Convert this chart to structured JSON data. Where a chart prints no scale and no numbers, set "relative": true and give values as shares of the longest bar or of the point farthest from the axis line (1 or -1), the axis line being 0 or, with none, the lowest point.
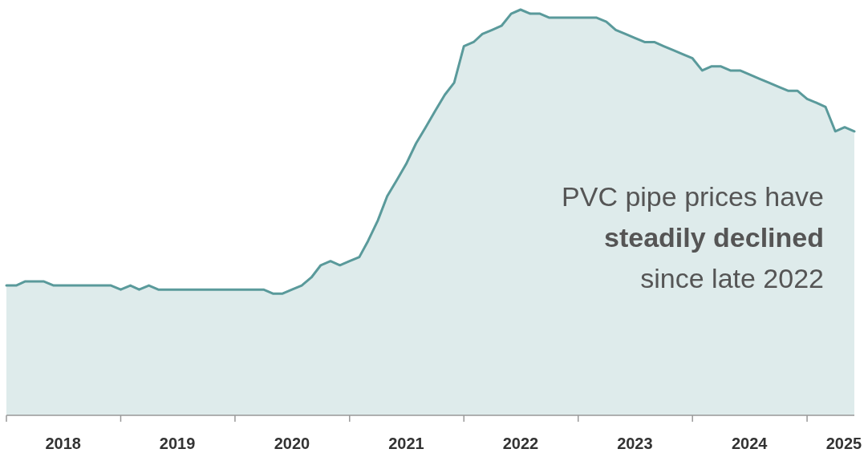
{
  "chart_data": {
    "type": "area",
    "relative": true,
    "x": [
      "2018-01",
      "2018-02",
      "2018-03",
      "2018-04",
      "2018-05",
      "2018-06",
      "2018-07",
      "2018-08",
      "2018-09",
      "2018-10",
      "2018-11",
      "2018-12",
      "2019-01",
      "2019-02",
      "2019-03",
      "2019-04",
      "2019-05",
      "2019-06",
      "2019-07",
      "2019-08",
      "2019-09",
      "2019-10",
      "2019-11",
      "2019-12",
      "2020-01",
      "2020-02",
      "2020-03",
      "2020-04",
      "2020-05",
      "2020-06",
      "2020-07",
      "2020-08",
      "2020-09",
      "2020-10",
      "2020-11",
      "2020-12",
      "2021-01",
      "2021-02",
      "2021-03",
      "2021-04",
      "2021-05",
      "2021-06",
      "2021-07",
      "2021-08",
      "2021-09",
      "2021-10",
      "2021-11",
      "2021-12",
      "2022-01",
      "2022-02",
      "2022-03",
      "2022-04",
      "2022-05",
      "2022-06",
      "2022-07",
      "2022-08",
      "2022-09",
      "2022-10",
      "2022-11",
      "2022-12",
      "2023-01",
      "2023-02",
      "2023-03",
      "2023-04",
      "2023-05",
      "2023-06",
      "2023-07",
      "2023-08",
      "2023-09",
      "2023-10",
      "2023-11",
      "2023-12",
      "2024-01",
      "2024-02",
      "2024-03",
      "2024-04",
      "2024-05",
      "2024-06",
      "2024-07",
      "2024-08",
      "2024-09",
      "2024-10",
      "2024-11",
      "2024-12",
      "2025-01",
      "2025-02",
      "2025-03",
      "2025-04",
      "2025-05",
      "2025-06"
    ],
    "series": [
      {
        "color": "#5a9a9b",
        "values": [
          0.32,
          0.32,
          0.33,
          0.33,
          0.33,
          0.32,
          0.32,
          0.32,
          0.32,
          0.32,
          0.32,
          0.32,
          0.31,
          0.32,
          0.31,
          0.32,
          0.31,
          0.31,
          0.31,
          0.31,
          0.31,
          0.31,
          0.31,
          0.31,
          0.31,
          0.31,
          0.31,
          0.31,
          0.3,
          0.3,
          0.31,
          0.32,
          0.34,
          0.37,
          0.38,
          0.37,
          0.38,
          0.39,
          0.43,
          0.48,
          0.54,
          0.58,
          0.62,
          0.67,
          0.71,
          0.75,
          0.79,
          0.82,
          0.91,
          0.92,
          0.94,
          0.95,
          0.96,
          0.99,
          1,
          0.99,
          0.99,
          0.98,
          0.98,
          0.98,
          0.98,
          0.98,
          0.98,
          0.97,
          0.95,
          0.94,
          0.93,
          0.92,
          0.92,
          0.91,
          0.9,
          0.89,
          0.88,
          0.85,
          0.86,
          0.86,
          0.85,
          0.85,
          0.84,
          0.83,
          0.82,
          0.81,
          0.8,
          0.8,
          0.78,
          0.77,
          0.76,
          0.7,
          0.71,
          0.7
        ]
      }
    ],
    "xlim": [
      "2018-01",
      "2025-06"
    ],
    "xticks": [
      {
        "value": "2018-01",
        "label": null
      },
      {
        "value": "2018-07",
        "label": "2018"
      },
      {
        "value": "2019-01",
        "label": null
      },
      {
        "value": "2019-07",
        "label": "2019"
      },
      {
        "value": "2020-01",
        "label": null
      },
      {
        "value": "2020-07",
        "label": "2020"
      },
      {
        "value": "2021-01",
        "label": null
      },
      {
        "value": "2021-07",
        "label": "2021"
      },
      {
        "value": "2022-01",
        "label": null
      },
      {
        "value": "2022-07",
        "label": "2022"
      },
      {
        "value": "2023-01",
        "label": null
      },
      {
        "value": "2023-07",
        "label": "2023"
      },
      {
        "value": "2024-01",
        "label": null
      },
      {
        "value": "2024-07",
        "label": "2024"
      },
      {
        "value": "2025-01",
        "label": null
      },
      {
        "value": "2025-05",
        "label": "2025"
      }
    ],
    "annotations": [
      "PVC pipe prices have",
      "steadily declined",
      "since late 2022"
    ]
  }
}
